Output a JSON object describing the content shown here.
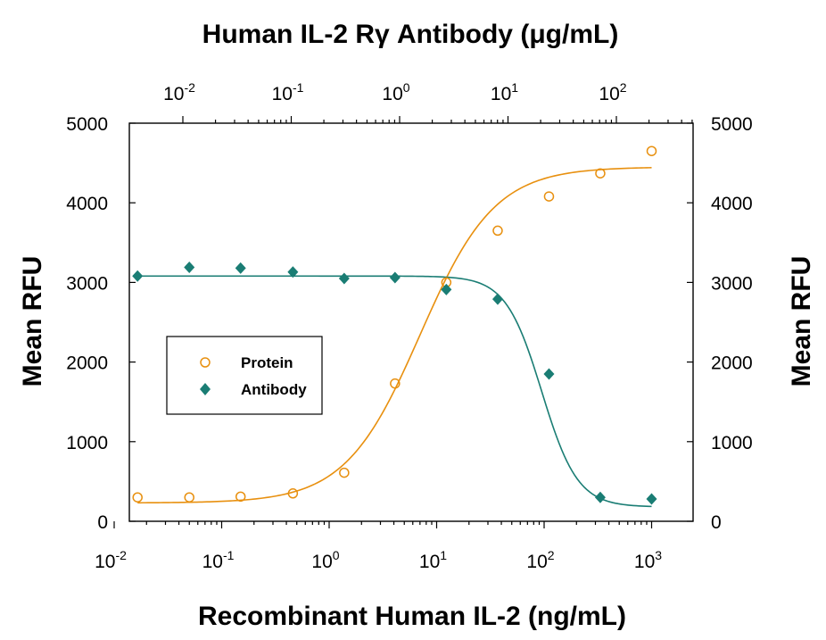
{
  "chart_data": {
    "type": "scatter",
    "top_xlabel": "Human IL-2 Rγ Antibody (μg/mL)",
    "xlabel": "Recombinant Human IL-2 (ng/mL)",
    "ylabel_left": "Mean RFU",
    "ylabel_right": "Mean RFU",
    "x_scale": "log",
    "xlim": [
      0.01,
      1500
    ],
    "ylim": [
      0,
      5000
    ],
    "y_ticks": [
      "0",
      "1000",
      "2000",
      "3000",
      "4000",
      "5000"
    ],
    "x_ticks_bottom": [
      {
        "base": "10",
        "exp": "-2",
        "value": 0.01
      },
      {
        "base": "10",
        "exp": "-1",
        "value": 0.1
      },
      {
        "base": "10",
        "exp": "0",
        "value": 1
      },
      {
        "base": "10",
        "exp": "1",
        "value": 10
      },
      {
        "base": "10",
        "exp": "2",
        "value": 100
      },
      {
        "base": "10",
        "exp": "3",
        "value": 1000
      }
    ],
    "x_ticks_top": [
      {
        "base": "10",
        "exp": "-2"
      },
      {
        "base": "10",
        "exp": "-1"
      },
      {
        "base": "10",
        "exp": "0"
      },
      {
        "base": "10",
        "exp": "1"
      },
      {
        "base": "10",
        "exp": "2"
      }
    ],
    "grid": false,
    "legend_position": "center-left",
    "series": [
      {
        "name": "Protein",
        "marker": "open-circle",
        "color": "#E8900F",
        "x": [
          0.0165,
          0.05,
          0.15,
          0.46,
          1.38,
          4.1,
          12.3,
          37,
          111,
          333,
          1000
        ],
        "y": [
          300,
          300,
          310,
          350,
          610,
          1730,
          3000,
          3650,
          4080,
          4370,
          4650
        ],
        "fit": {
          "bottom": 230,
          "top": 4450,
          "ec50": 7.0,
          "hill": 1.25
        }
      },
      {
        "name": "Antibody",
        "marker": "filled-diamond",
        "color": "#1A7D74",
        "x": [
          0.0165,
          0.05,
          0.15,
          0.46,
          1.38,
          4.1,
          12.3,
          37,
          111,
          333,
          1000
        ],
        "y": [
          3080,
          3190,
          3180,
          3130,
          3050,
          3060,
          2910,
          2790,
          1850,
          300,
          280
        ],
        "fit": {
          "bottom": 180,
          "top": 3080,
          "ec50": 95,
          "hill": 2.6
        }
      }
    ]
  }
}
